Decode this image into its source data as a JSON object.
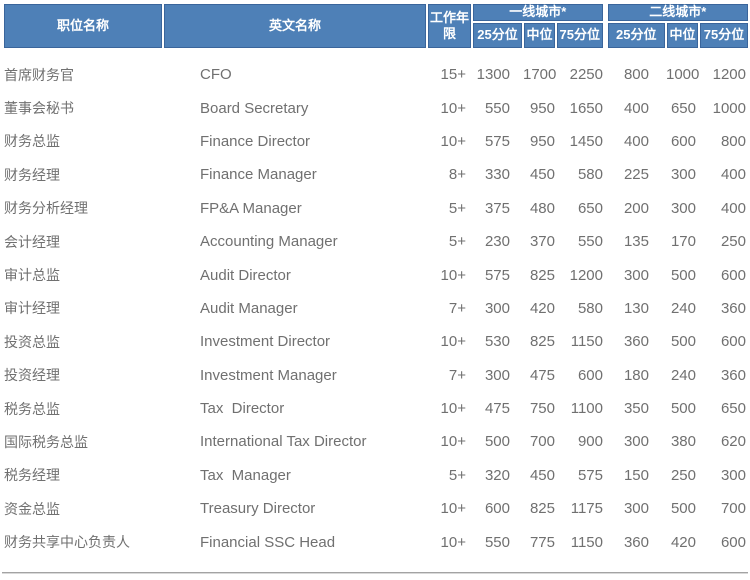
{
  "table": {
    "header": {
      "col_position": "职位名称",
      "col_english": "英文名称",
      "col_experience": "工作年限",
      "group_tier1": "一线城市*",
      "group_tier2": "二线城市*",
      "sub_p25": "25分位",
      "sub_p50": "中位",
      "sub_p75": "75分位"
    },
    "rows": [
      {
        "position_cn": "首席财务官",
        "position_en": "CFO",
        "experience": "15+",
        "tier1": [
          1300,
          1700,
          2250
        ],
        "tier2": [
          800,
          1000,
          1200
        ]
      },
      {
        "position_cn": "董事会秘书",
        "position_en": "Board Secretary",
        "experience": "10+",
        "tier1": [
          550,
          950,
          1650
        ],
        "tier2": [
          400,
          650,
          1000
        ]
      },
      {
        "position_cn": "财务总监",
        "position_en": "Finance Director",
        "experience": "10+",
        "tier1": [
          575,
          950,
          1450
        ],
        "tier2": [
          400,
          600,
          800
        ]
      },
      {
        "position_cn": "财务经理",
        "position_en": "Finance Manager",
        "experience": "8+",
        "tier1": [
          330,
          450,
          580
        ],
        "tier2": [
          225,
          300,
          400
        ]
      },
      {
        "position_cn": "财务分析经理",
        "position_en": "FP&A Manager",
        "experience": "5+",
        "tier1": [
          375,
          480,
          650
        ],
        "tier2": [
          200,
          300,
          400
        ]
      },
      {
        "position_cn": "会计经理",
        "position_en": "Accounting Manager",
        "experience": "5+",
        "tier1": [
          230,
          370,
          550
        ],
        "tier2": [
          135,
          170,
          250
        ]
      },
      {
        "position_cn": "审计总监",
        "position_en": "Audit Director",
        "experience": "10+",
        "tier1": [
          575,
          825,
          1200
        ],
        "tier2": [
          300,
          500,
          600
        ]
      },
      {
        "position_cn": "审计经理",
        "position_en": "Audit Manager",
        "experience": "7+",
        "tier1": [
          300,
          420,
          580
        ],
        "tier2": [
          130,
          240,
          360
        ]
      },
      {
        "position_cn": "投资总监",
        "position_en": "Investment Director",
        "experience": "10+",
        "tier1": [
          530,
          825,
          1150
        ],
        "tier2": [
          360,
          500,
          600
        ]
      },
      {
        "position_cn": "投资经理",
        "position_en": "Investment Manager",
        "experience": "7+",
        "tier1": [
          300,
          475,
          600
        ],
        "tier2": [
          180,
          240,
          360
        ]
      },
      {
        "position_cn": "税务总监",
        "position_en": "Tax  Director",
        "experience": "10+",
        "tier1": [
          475,
          750,
          1100
        ],
        "tier2": [
          350,
          500,
          650
        ]
      },
      {
        "position_cn": "国际税务总监",
        "position_en": "International Tax Director",
        "experience": "10+",
        "tier1": [
          500,
          700,
          900
        ],
        "tier2": [
          300,
          380,
          620
        ]
      },
      {
        "position_cn": "税务经理",
        "position_en": "Tax  Manager",
        "experience": "5+",
        "tier1": [
          320,
          450,
          575
        ],
        "tier2": [
          150,
          250,
          300
        ]
      },
      {
        "position_cn": "资金总监",
        "position_en": "Treasury Director",
        "experience": "10+",
        "tier1": [
          600,
          825,
          1175
        ],
        "tier2": [
          300,
          500,
          700
        ]
      },
      {
        "position_cn": "财务共享中心负责人",
        "position_en": "Financial SSC Head",
        "experience": "10+",
        "tier1": [
          550,
          775,
          1150
        ],
        "tier2": [
          360,
          420,
          600
        ]
      }
    ]
  },
  "colors": {
    "header_bg": "#4E80B7",
    "header_edge": "#3A659B",
    "header_text": "#FFFFFF",
    "body_text": "#707070",
    "divider": "#A3A3A3"
  }
}
